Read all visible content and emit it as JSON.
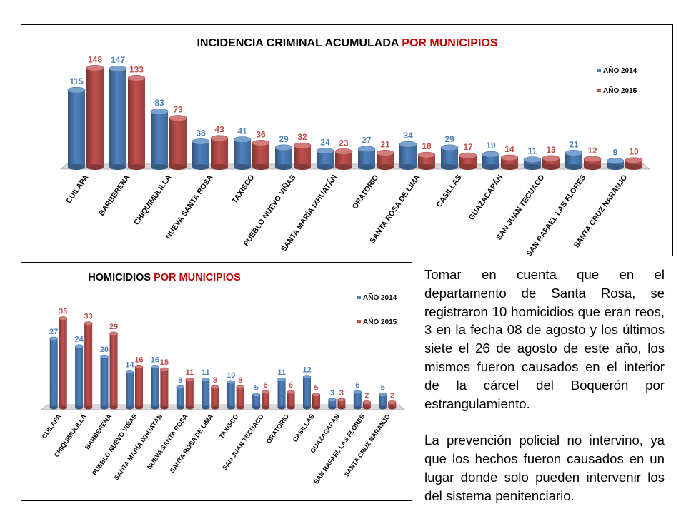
{
  "chart_data": [
    {
      "type": "bar",
      "title": "INCIDENCIA CRIMINAL ACUMULADA",
      "title_highlight": "POR MUNICIPIOS",
      "categories": [
        "CUILAPA",
        "BARBERENA",
        "CHIQUIMULILLA",
        "NUEVA SANTA ROSA",
        "TAXISCO",
        "PUEBLO NUEVO VIÑAS",
        "SANTA MARÍA IXHUATÁN",
        "ORATORIO",
        "SANTA ROSA DE LIMA",
        "CASILLAS",
        "GUAZACAPÁN",
        "SAN JUAN TECUACO",
        "SAN RAFAEL LAS FLORES",
        "SANTA CRUZ NARANJO"
      ],
      "series": [
        {
          "name": "AÑO 2014",
          "color": "#4F81BD",
          "values": [
            115,
            147,
            83,
            38,
            41,
            29,
            24,
            27,
            34,
            29,
            19,
            11,
            21,
            9
          ]
        },
        {
          "name": "AÑO 2015",
          "color": "#C0504D",
          "values": [
            148,
            133,
            73,
            43,
            36,
            32,
            23,
            21,
            18,
            17,
            14,
            13,
            12,
            10
          ]
        }
      ],
      "ylim": [
        0,
        160
      ],
      "grid": false,
      "legend_position": "right"
    },
    {
      "type": "bar",
      "title": "HOMICIDIOS",
      "title_highlight": "POR MUNICIPIOS",
      "categories": [
        "CUILAPA",
        "CHIQUIMULILLA",
        "BARBERENA",
        "PUEBLO NUEVO VIÑAS",
        "SANTA MARÍA IXHUATÁN",
        "NUEVA SANTA ROSA",
        "SANTA ROSA DE LIMA",
        "TAXISCO",
        "SAN JUAN TECUACO",
        "ORATORIO",
        "CASILLAS",
        "GUAZACAPÁN",
        "SAN RAFAEL LAS FLORES",
        "SANTA CRUZ NARANJO"
      ],
      "series": [
        {
          "name": "AÑO 2014",
          "color": "#4F81BD",
          "values": [
            27,
            24,
            20,
            14,
            16,
            8,
            11,
            10,
            5,
            11,
            12,
            3,
            6,
            5
          ]
        },
        {
          "name": "AÑO 2015",
          "color": "#C0504D",
          "values": [
            35,
            33,
            29,
            16,
            15,
            11,
            8,
            8,
            6,
            6,
            5,
            3,
            2,
            2
          ]
        }
      ],
      "ylim": [
        0,
        40
      ],
      "grid": false,
      "legend_position": "right"
    }
  ],
  "note": {
    "paragraph1": "Tomar en cuenta que en el departamento de Santa Rosa, se registraron 10 homicidios que eran reos, 3 en la fecha 08 de agosto y los últimos siete el 26 de agosto de este año, los mismos fueron causados en el interior de la cárcel del Boquerón por estrangulamiento.",
    "paragraph2": "La prevención policial no intervino, ya que los hechos fueron causados en un lugar donde solo pueden intervenir los del sistema penitenciario."
  },
  "colors": {
    "title_dark": "#000000",
    "title_highlight": "#C00000",
    "label_2014": "#4F81BD",
    "label_2015": "#C0504D"
  }
}
